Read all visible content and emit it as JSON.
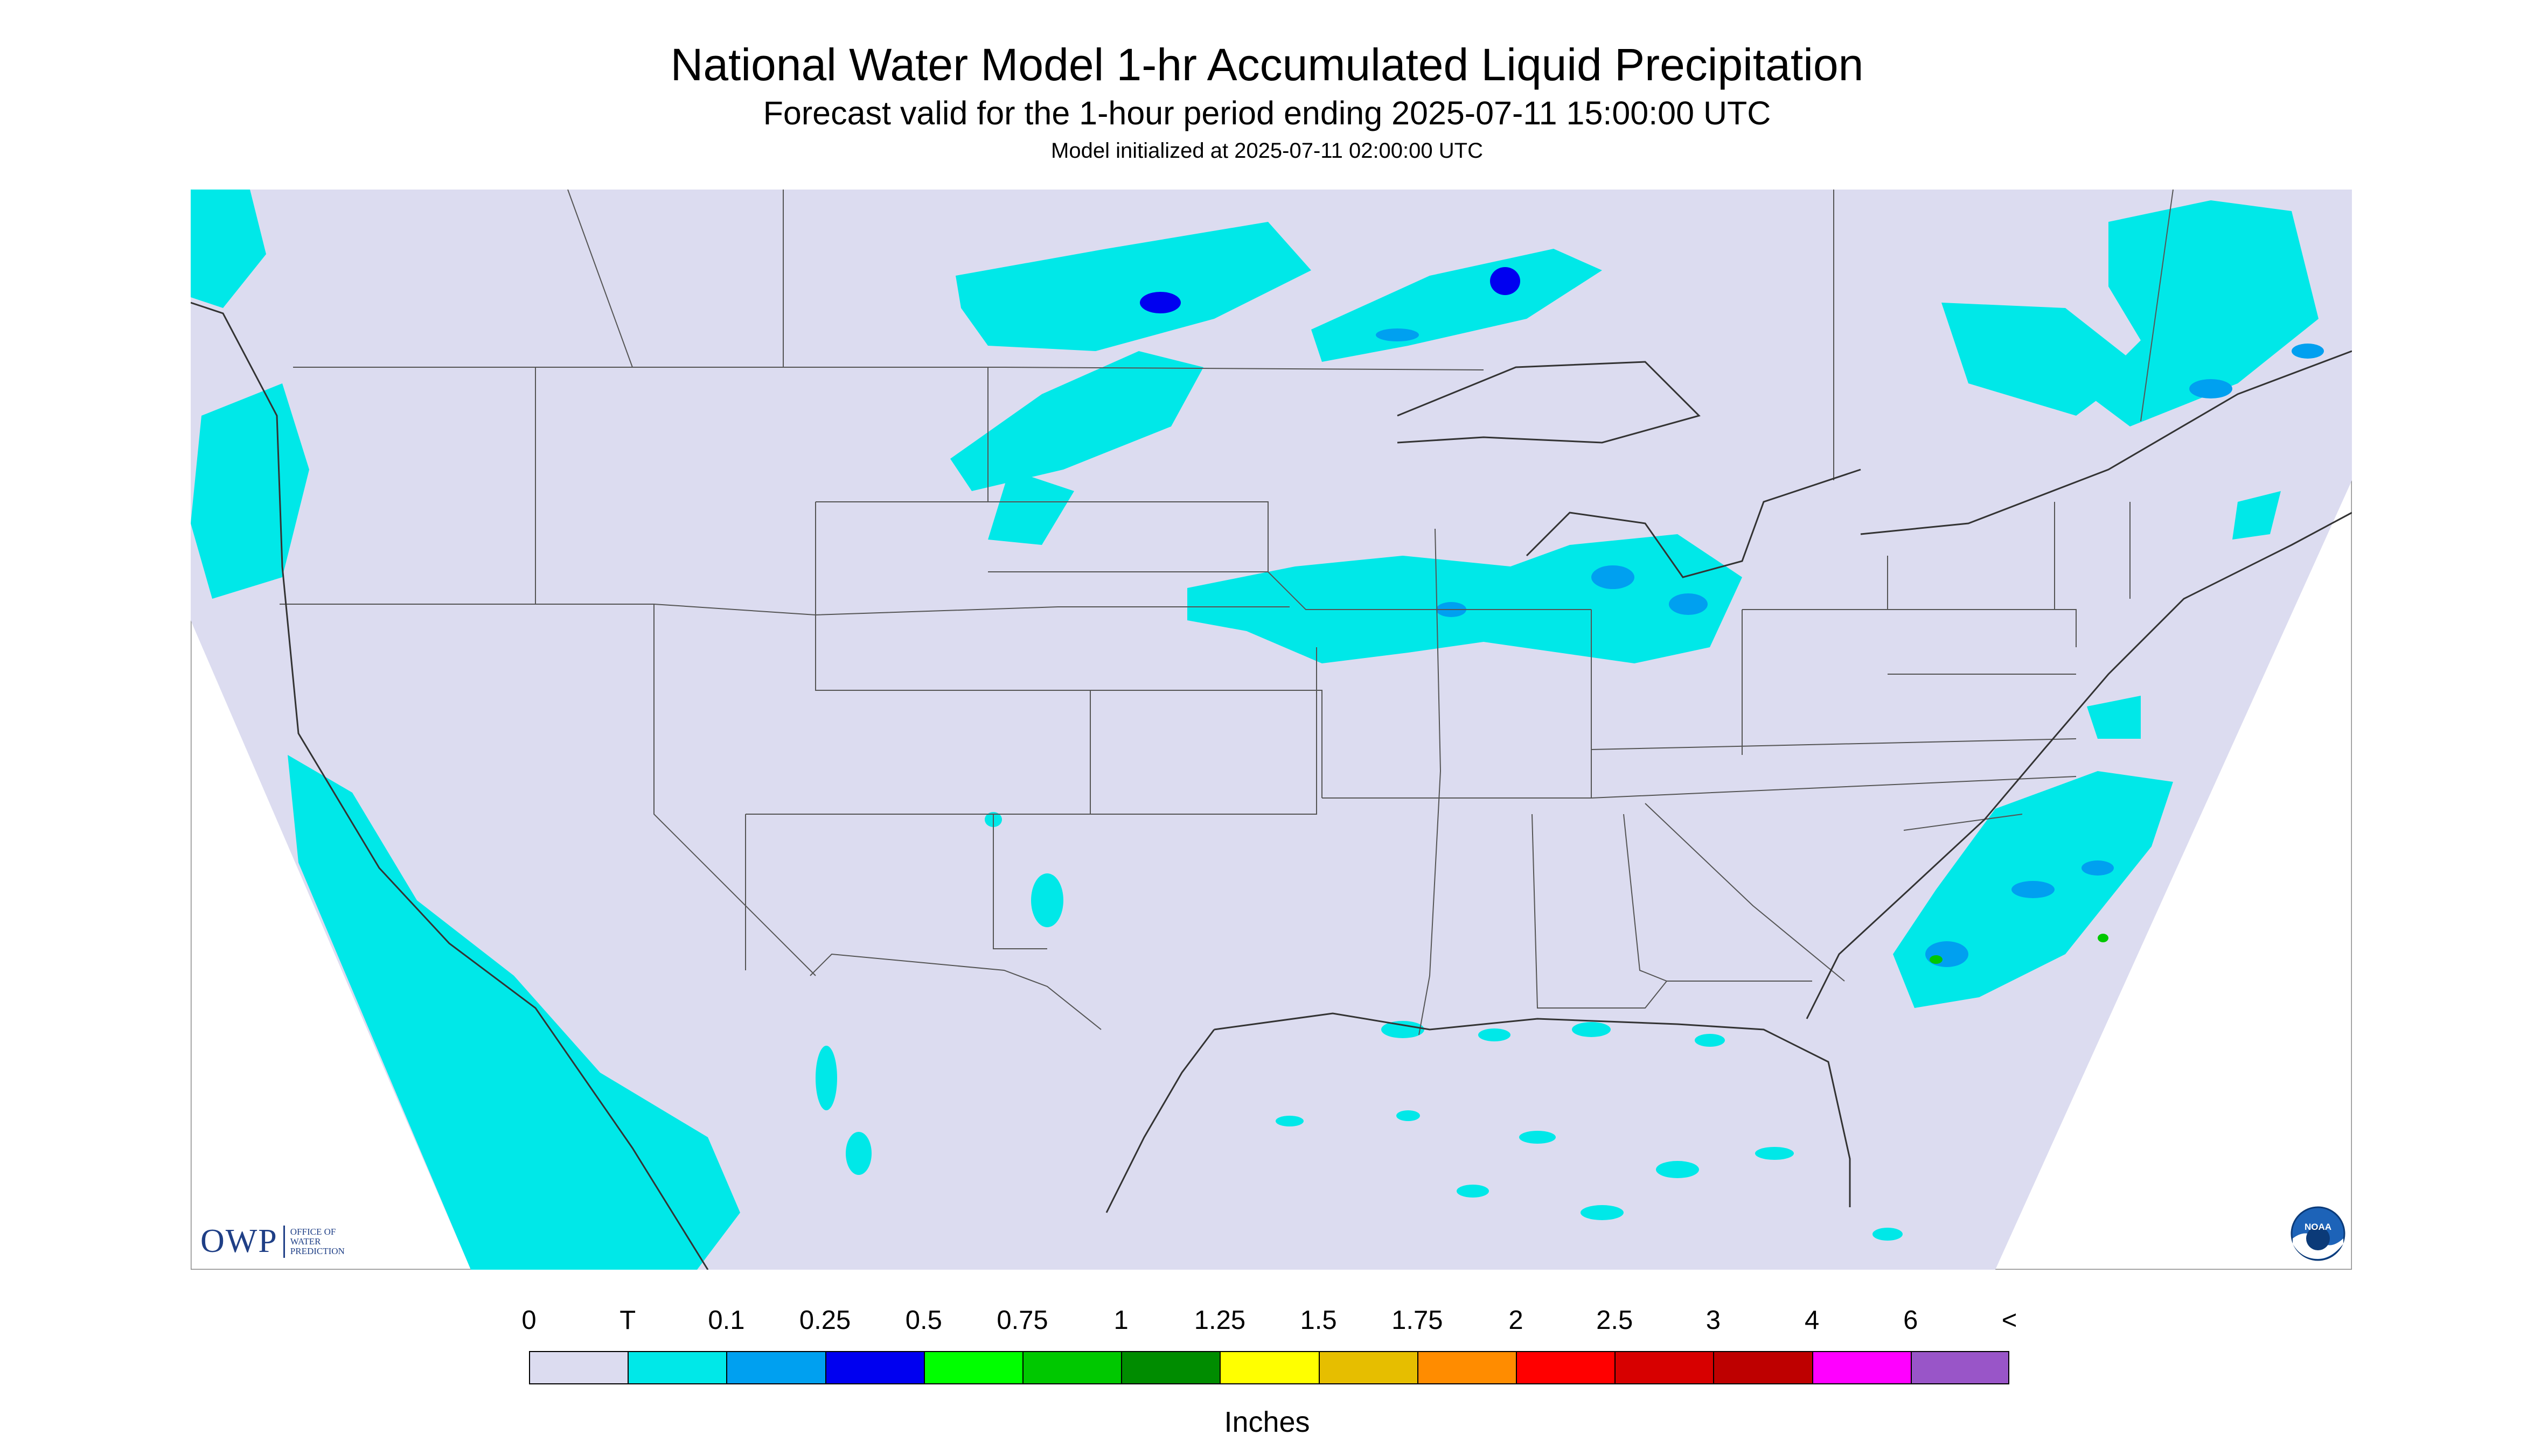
{
  "title": "National Water Model 1-hr Accumulated Liquid Precipitation",
  "subtitle": "Forecast valid for the 1-hour period ending 2025-07-11 15:00:00 UTC",
  "init_line": "Model initialized at 2025-07-11 02:00:00 UTC",
  "legend": {
    "units": "Inches",
    "labels": [
      "0",
      "T",
      "0.1",
      "0.25",
      "0.5",
      "0.75",
      "1",
      "1.25",
      "1.5",
      "1.75",
      "2",
      "2.5",
      "3",
      "4",
      "6",
      "<"
    ],
    "colors": [
      "#dcdcf0",
      "#00e8e8",
      "#00a0f0",
      "#0000f0",
      "#00ff00",
      "#00c800",
      "#008c00",
      "#ffff00",
      "#e6be00",
      "#ff8c00",
      "#ff0000",
      "#d70000",
      "#be0000",
      "#ff00ff",
      "#9955c8"
    ]
  },
  "logos": {
    "owp_main": "OWP",
    "owp_sub": [
      "OFFICE OF",
      "WATER",
      "PREDICTION"
    ],
    "noaa": "NOAA"
  },
  "colors": {
    "map_background": "#dcdcf0",
    "boundary_lines": "#555555",
    "trace_precip": "#00e8e8",
    "light_precip": "#00a0f0",
    "moderate_precip": "#0000f0"
  }
}
